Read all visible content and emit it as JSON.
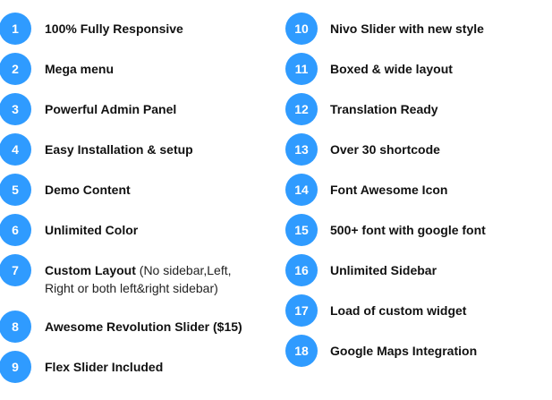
{
  "accent_color": "#2f9bff",
  "left": [
    {
      "num": "1",
      "label": "100% Fully Responsive"
    },
    {
      "num": "2",
      "label": "Mega menu"
    },
    {
      "num": "3",
      "label": "Powerful Admin Panel"
    },
    {
      "num": "4",
      "label": "Easy Installation & setup"
    },
    {
      "num": "5",
      "label": "Demo Content"
    },
    {
      "num": "6",
      "label": "Unlimited Color"
    },
    {
      "num": "7",
      "label": "Custom Layout",
      "note": " (No sidebar,Left,",
      "note2": "Right or both left&right sidebar)"
    },
    {
      "num": "8",
      "label": "Awesome Revolution Slider ($15)"
    },
    {
      "num": "9",
      "label": "Flex Slider Included"
    }
  ],
  "right": [
    {
      "num": "10",
      "label": "Nivo Slider with new style"
    },
    {
      "num": "11",
      "label": "Boxed & wide layout"
    },
    {
      "num": "12",
      "label": "Translation Ready"
    },
    {
      "num": "13",
      "label": "Over 30 shortcode"
    },
    {
      "num": "14",
      "label": "Font Awesome Icon"
    },
    {
      "num": "15",
      "label": "500+ font with google font"
    },
    {
      "num": "16",
      "label": "Unlimited Sidebar"
    },
    {
      "num": "17",
      "label": "Load of custom widget"
    },
    {
      "num": "18",
      "label": "Google Maps Integration"
    }
  ]
}
